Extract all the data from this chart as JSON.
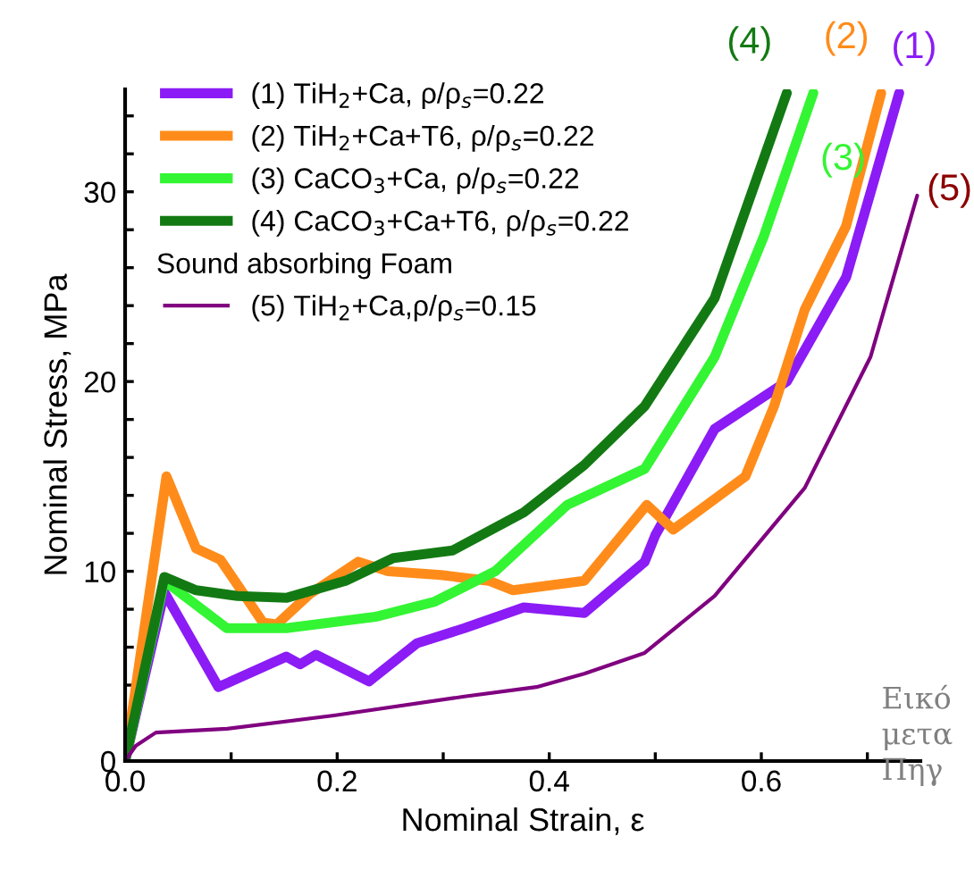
{
  "chart_data": {
    "type": "line",
    "xlabel": "Nominal Strain, ε",
    "ylabel": "Nominal Stress, MPa",
    "xlim": [
      0,
      0.75
    ],
    "ylim": [
      0,
      35.4
    ],
    "xticks": [
      {
        "value": 0,
        "label": "0.0"
      },
      {
        "value": 0.1,
        "label": null
      },
      {
        "value": 0.2,
        "label": "0.2"
      },
      {
        "value": 0.3,
        "label": null
      },
      {
        "value": 0.4,
        "label": "0.4"
      },
      {
        "value": 0.5,
        "label": null
      },
      {
        "value": 0.6,
        "label": "0.6"
      },
      {
        "value": 0.7,
        "label": null
      }
    ],
    "yticks": [
      0,
      {
        "value": 2,
        "label": null
      },
      {
        "value": 4,
        "label": null
      },
      {
        "value": 6,
        "label": null
      },
      {
        "value": 8,
        "label": null
      },
      10,
      {
        "value": 12,
        "label": null
      },
      {
        "value": 14,
        "label": null
      },
      {
        "value": 16,
        "label": null
      },
      {
        "value": 18,
        "label": null
      },
      20,
      {
        "value": 22,
        "label": null
      },
      {
        "value": 24,
        "label": null
      },
      {
        "value": 26,
        "label": null
      },
      {
        "value": 28,
        "label": null
      },
      30,
      {
        "value": 32,
        "label": null
      },
      {
        "value": 34,
        "label": null
      }
    ],
    "legend": "top left",
    "grid": false,
    "marker": "none",
    "line_style": "solid",
    "series": [
      {
        "name": "(1) TiH$_{2}$+Ca, ρ/ρ$_{s}$=0.22",
        "color": "#8b1cf5",
        "x": [
          0,
          0.037,
          0.088,
          0.152,
          0.165,
          0.18,
          0.23,
          0.275,
          0.32,
          0.376,
          0.433,
          0.49,
          0.5,
          0.556,
          0.624,
          0.68,
          0.73
        ],
        "values": [
          0,
          8.9,
          3.9,
          5.5,
          5.1,
          5.6,
          4.2,
          6.2,
          7.0,
          8.1,
          7.8,
          10.5,
          11.9,
          17.5,
          20.0,
          25.5,
          35.2
        ]
      },
      {
        "name": "(2) TiH$_{2}$+Ca+T6, ρ/ρ$_{s}$=0.22",
        "color": "#ff8c1a",
        "x": [
          0,
          0.039,
          0.067,
          0.09,
          0.13,
          0.143,
          0.174,
          0.22,
          0.248,
          0.298,
          0.343,
          0.366,
          0.433,
          0.492,
          0.517,
          0.585,
          0.612,
          0.641,
          0.68,
          0.713
        ],
        "values": [
          0,
          15.0,
          11.2,
          10.6,
          7.3,
          7.2,
          8.8,
          10.5,
          10.0,
          9.8,
          9.5,
          9.0,
          9.5,
          13.5,
          12.2,
          15.0,
          18.7,
          23.8,
          28.2,
          35.2
        ]
      },
      {
        "name": "(3) CaCO$_{3}$+Ca, ρ/ρ$_{s}$=0.22",
        "color": "#33f533",
        "x": [
          0,
          0.037,
          0.096,
          0.152,
          0.236,
          0.292,
          0.349,
          0.417,
          0.49,
          0.556,
          0.602,
          0.649
        ],
        "values": [
          0,
          9.5,
          7.0,
          7.0,
          7.6,
          8.4,
          10.0,
          13.5,
          15.4,
          21.3,
          27.6,
          35.2
        ]
      },
      {
        "name": "(4) CaCO$_{3}$+Ca+T6, ρ/ρ$_{s}$=0.22",
        "color": "#137a13",
        "x": [
          0,
          0.037,
          0.067,
          0.106,
          0.152,
          0.208,
          0.253,
          0.309,
          0.376,
          0.433,
          0.49,
          0.556,
          0.624
        ],
        "values": [
          0,
          9.7,
          9.0,
          8.7,
          8.6,
          9.5,
          10.7,
          11.1,
          13.1,
          15.6,
          18.7,
          24.4,
          35.2
        ]
      },
      {
        "name": "(5) TiH$_{2}$+Ca,ρ/ρ$_{s}$=0.15",
        "color": "#800080",
        "x": [
          0,
          0.01,
          0.029,
          0.096,
          0.197,
          0.32,
          0.388,
          0.433,
          0.49,
          0.556,
          0.641,
          0.703,
          0.747
        ],
        "values": [
          0,
          0.8,
          1.5,
          1.7,
          2.4,
          3.4,
          3.9,
          4.6,
          5.7,
          8.7,
          14.4,
          21.3,
          29.8
        ]
      }
    ],
    "annotations": [
      "Sound absorbing Foam",
      "(1)",
      "(2)",
      "(3)",
      "(4)",
      "(5)",
      "Εικό\nμετα\nΠηγ"
    ]
  }
}
